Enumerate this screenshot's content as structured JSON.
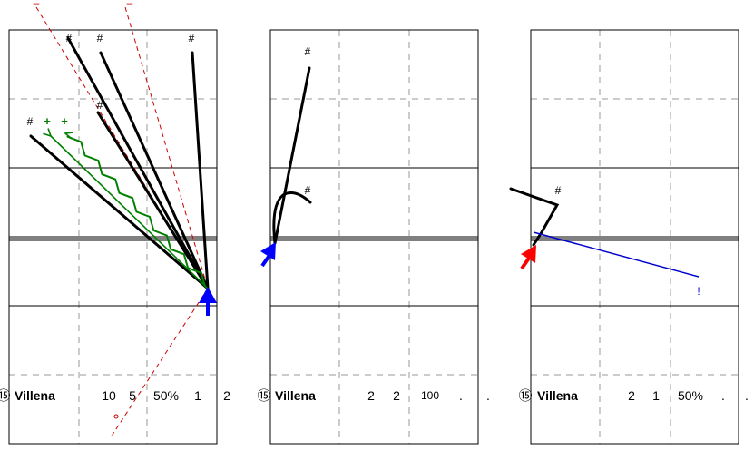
{
  "colors": {
    "frame": "#000000",
    "grid_dashed": "#999999",
    "midline": "#808080",
    "play": "#000000",
    "green": "#008000",
    "blue_arrow": "#0000ff",
    "red_arrow": "#ff0000",
    "red_dashed": "#cc0000",
    "blue_line": "#0000cc"
  },
  "panels": [
    {
      "marks": [
        "#",
        "#",
        "#",
        "#",
        "#"
      ],
      "green_marks": [
        "+",
        "+"
      ],
      "red_top_marks": [
        "–",
        "–"
      ],
      "red_circle": "°",
      "row": {
        "circled": "⑮",
        "team": "Villena",
        "v1": "10",
        "v2": "5",
        "v3": "50%",
        "v4": "1",
        "v5": "2"
      }
    },
    {
      "marks": [
        "#",
        "#"
      ],
      "row": {
        "circled": "⑮",
        "team": "Villena",
        "v1": "2",
        "v2": "2",
        "v3": "100",
        "v4": ".",
        "v5": "."
      }
    },
    {
      "marks": [
        "#"
      ],
      "blue_mark": "!",
      "row": {
        "circled": "⑮",
        "team": "Villena",
        "v1": "2",
        "v2": "1",
        "v3": "50%",
        "v4": ".",
        "v5": "."
      }
    }
  ]
}
